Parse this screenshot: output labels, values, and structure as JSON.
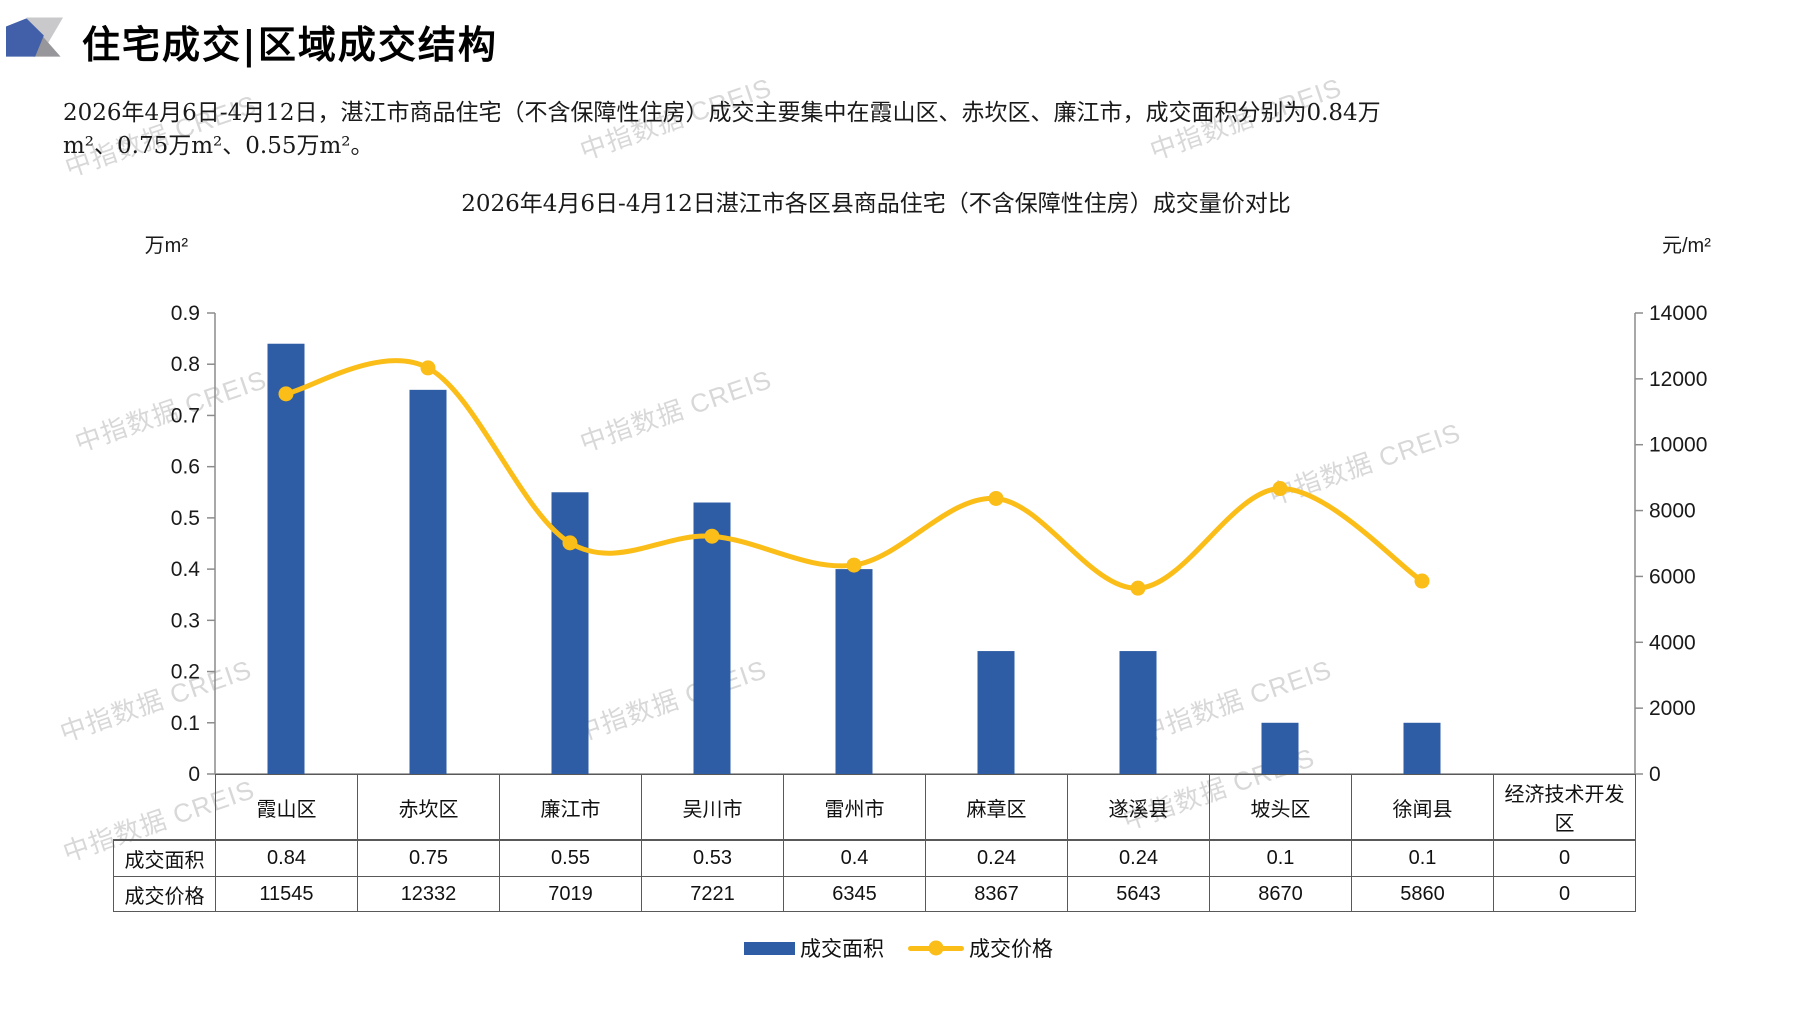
{
  "header": {
    "title": "住宅成交|区域成交结构",
    "logo_colors": {
      "blue": "#4160a9",
      "light_gray": "#c9c9cb",
      "dark_gray": "#97979b"
    }
  },
  "watermark": {
    "text": "中指数据 CREIS"
  },
  "summary": {
    "text": "2026年4月6日-4月12日，湛江市商品住宅（不含保障性住房）成交主要集中在霞山区、赤坎区、廉江市，成交面积分别为0.84万m²、0.75万m²、0.55万m²。"
  },
  "chart_data": {
    "type": "bar",
    "title": "2026年4月6日-4月12日湛江市各区县商品住宅（不含保障性住房）成交量价对比",
    "categories": [
      "霞山区",
      "赤坎区",
      "廉江市",
      "吴川市",
      "雷州市",
      "麻章区",
      "遂溪县",
      "坡头区",
      "徐闻县",
      "经济技术开发区"
    ],
    "series": [
      {
        "name": "成交面积",
        "type": "bar",
        "axis": "left",
        "color": "#2e5ca5",
        "values": [
          0.84,
          0.75,
          0.55,
          0.53,
          0.4,
          0.24,
          0.24,
          0.1,
          0.1,
          0
        ]
      },
      {
        "name": "成交价格",
        "type": "line",
        "axis": "right",
        "color": "#fbbd17",
        "values": [
          11545,
          12332,
          7019,
          7221,
          6345,
          8367,
          5643,
          8670,
          5860,
          0
        ],
        "hide_trailing_zeros": true
      }
    ],
    "left_axis": {
      "unit": "万m²",
      "min": 0,
      "max": 0.9,
      "step": 0.1,
      "labels": [
        "0.9",
        "0.8",
        "0.7",
        "0.6",
        "0.5",
        "0.4",
        "0.3",
        "0.2",
        "0.1",
        "0"
      ]
    },
    "right_axis": {
      "unit": "元/m²",
      "min": 0,
      "max": 14000,
      "step": 2000,
      "labels": [
        "14000",
        "12000",
        "10000",
        "8000",
        "6000",
        "4000",
        "2000",
        "0"
      ]
    },
    "grid": false,
    "legend_position": "bottom"
  },
  "table": {
    "row_headers": [
      "成交面积",
      "成交价格"
    ]
  }
}
